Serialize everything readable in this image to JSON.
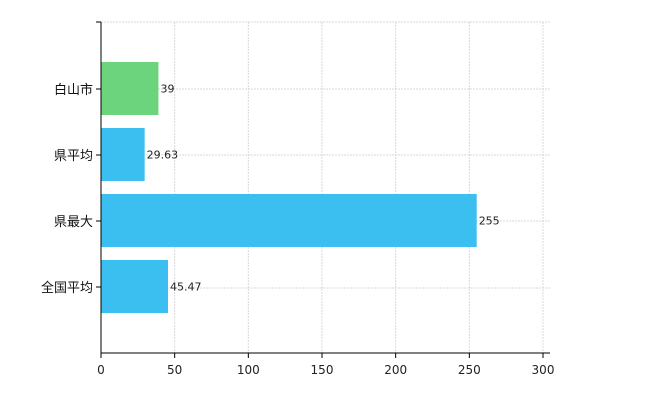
{
  "chart_data": {
    "type": "bar",
    "orientation": "horizontal",
    "categories": [
      "白山市",
      "県平均",
      "県最大",
      "全国平均"
    ],
    "values": [
      39,
      29.63,
      255,
      45.47
    ],
    "value_labels": [
      "39",
      "29.63",
      "255",
      "45.47"
    ],
    "bar_colors": [
      "#6dd47e",
      "#3bbff0",
      "#3bbff0",
      "#3bbff0"
    ],
    "title": "",
    "xlabel": "",
    "ylabel": "",
    "xlim": [
      0,
      300
    ],
    "xticks": [
      0,
      50,
      100,
      150,
      200,
      250,
      300
    ],
    "xtick_labels": [
      "0",
      "50",
      "100",
      "150",
      "200",
      "250",
      "300"
    ],
    "grid": true,
    "legend": "none"
  }
}
